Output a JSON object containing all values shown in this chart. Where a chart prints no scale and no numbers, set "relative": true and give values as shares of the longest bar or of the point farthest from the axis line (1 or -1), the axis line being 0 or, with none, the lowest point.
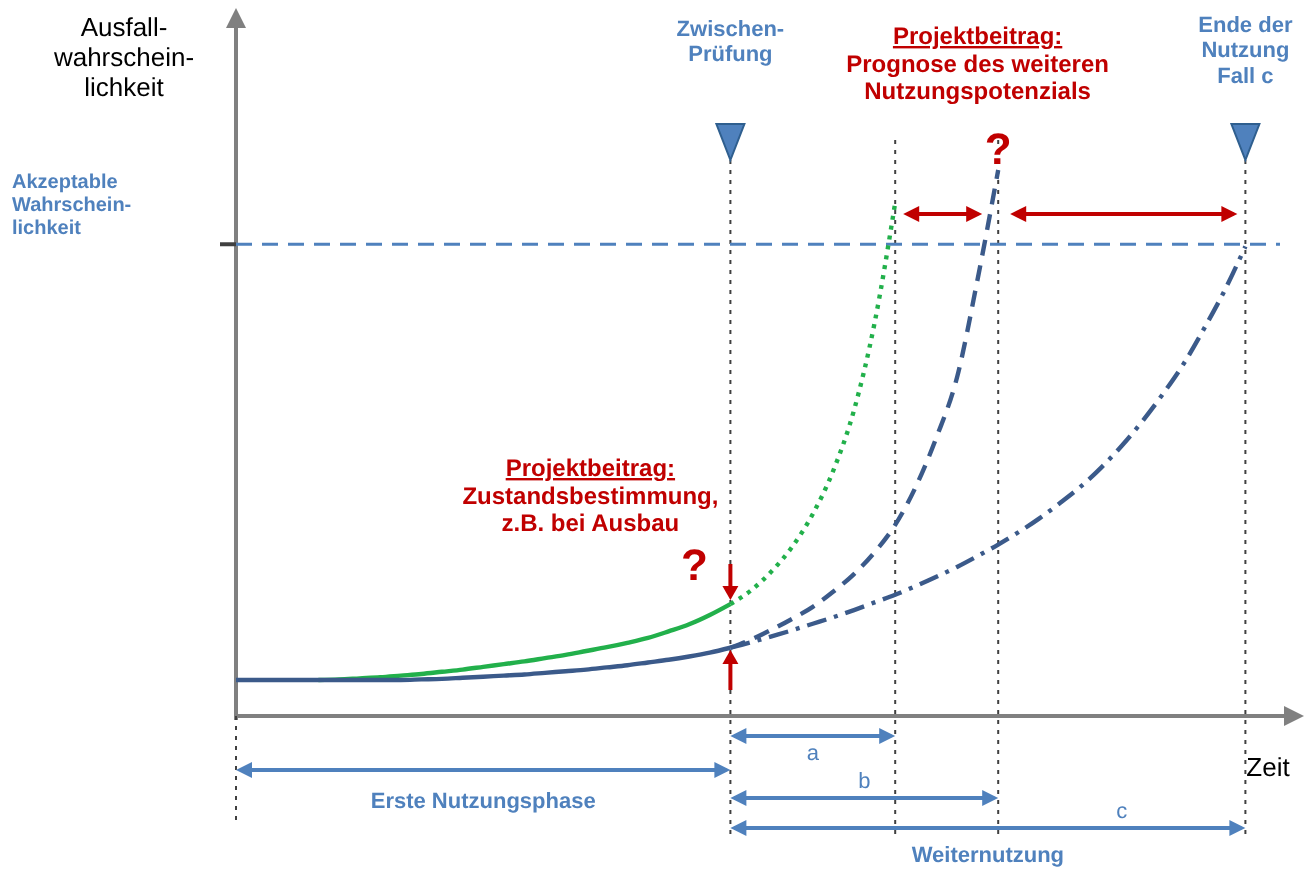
{
  "chart_data": {
    "type": "line",
    "relative": true,
    "grid": "x",
    "xlabel": "Zeit",
    "ylabel": "Ausfall-\nwahrschein-\nlichkeit",
    "categories": [
      null,
      null,
      null,
      null,
      null,
      null,
      null,
      null,
      null,
      null,
      null,
      null,
      null,
      null,
      null,
      null,
      null,
      null,
      null,
      null,
      null,
      null,
      null,
      null,
      null,
      null,
      null,
      null,
      null,
      null,
      null,
      null,
      null,
      null,
      null,
      null,
      null,
      null,
      null,
      null,
      null,
      null,
      null,
      null,
      null,
      null,
      null,
      null,
      null,
      null,
      null
    ],
    "series": [
      {
        "color": "#22b04b",
        "line_style": "solid",
        "values": [
          null,
          null,
          null,
          null,
          0.066,
          0.067,
          0.069,
          0.071,
          0.074,
          0.077,
          0.081,
          0.085,
          0.09,
          0.095,
          0.1,
          0.106,
          0.112,
          0.119,
          0.126,
          0.134,
          0.143,
          0.155,
          0.168,
          0.185,
          0.205,
          null,
          null,
          null,
          null,
          null,
          null,
          null,
          null,
          null,
          null,
          null,
          null,
          null,
          null,
          null,
          null,
          null,
          null,
          null,
          null,
          null,
          null,
          null,
          null,
          null,
          null
        ]
      },
      {
        "color": "#22b04b",
        "line_style": "dotted",
        "values": [
          null,
          null,
          null,
          null,
          null,
          null,
          null,
          null,
          null,
          null,
          null,
          null,
          null,
          null,
          null,
          null,
          null,
          null,
          null,
          null,
          null,
          null,
          null,
          null,
          0.205,
          0.23,
          0.265,
          0.31,
          0.37,
          0.45,
          0.56,
          0.72,
          0.94,
          null,
          null,
          null,
          null,
          null,
          null,
          null,
          null,
          null,
          null,
          null,
          null,
          null,
          null,
          null,
          null,
          null,
          null
        ]
      },
      {
        "color": "#3b5a8a",
        "line_style": "solid",
        "values": [
          0.066,
          0.066,
          0.066,
          0.066,
          0.066,
          0.066,
          0.066,
          0.066,
          0.066,
          0.067,
          0.068,
          0.07,
          0.072,
          0.074,
          0.076,
          0.079,
          0.082,
          0.085,
          0.089,
          0.093,
          0.098,
          0.103,
          0.109,
          0.116,
          0.125,
          null,
          null,
          null,
          null,
          null,
          null,
          null,
          null,
          null,
          null,
          null,
          null,
          null,
          null,
          null,
          null,
          null,
          null,
          null,
          null,
          null,
          null,
          null,
          null,
          null,
          null
        ]
      },
      {
        "color": "#3b5a8a",
        "line_style": "dashed",
        "values": [
          null,
          null,
          null,
          null,
          null,
          null,
          null,
          null,
          null,
          null,
          null,
          null,
          null,
          null,
          null,
          null,
          null,
          null,
          null,
          null,
          null,
          null,
          null,
          null,
          0.125,
          0.14,
          0.158,
          0.178,
          0.2,
          0.228,
          0.26,
          0.3,
          0.35,
          0.42,
          0.51,
          0.62,
          0.8,
          1.0,
          null,
          null,
          null,
          null,
          null,
          null,
          null,
          null,
          null,
          null,
          null,
          null,
          null
        ]
      },
      {
        "color": "#3b5a8a",
        "line_style": "dashdot",
        "values": [
          null,
          null,
          null,
          null,
          null,
          null,
          null,
          null,
          null,
          null,
          null,
          null,
          null,
          null,
          null,
          null,
          null,
          null,
          null,
          null,
          null,
          null,
          null,
          null,
          0.125,
          0.135,
          0.146,
          0.157,
          0.169,
          0.181,
          0.194,
          0.208,
          0.222,
          0.238,
          0.255,
          0.273,
          0.293,
          0.314,
          0.337,
          0.362,
          0.39,
          0.42,
          0.455,
          0.495,
          0.54,
          0.59,
          0.645,
          0.71,
          0.78,
          0.86,
          null
        ]
      }
    ],
    "ref_lines": [
      {
        "axis": "y",
        "value": 0.864,
        "label": "Akzeptable\nWahrschein-\nlichkeit",
        "color": "#4f81bd",
        "line_style": "dashed"
      }
    ],
    "annotations": [
      "Zwischen-\nPrüfung",
      "Ende der\nNutzung\nFall c",
      "Projektbeitrag:\nPrognose des weiteren\nNutzungspotenzials",
      "Projektbeitrag:\nZustandsbestimmung,\nz.B. bei Ausbau",
      "?",
      "?",
      "a",
      "b",
      "c",
      "Erste Nutzungsphase",
      "Weiternutzung"
    ]
  }
}
